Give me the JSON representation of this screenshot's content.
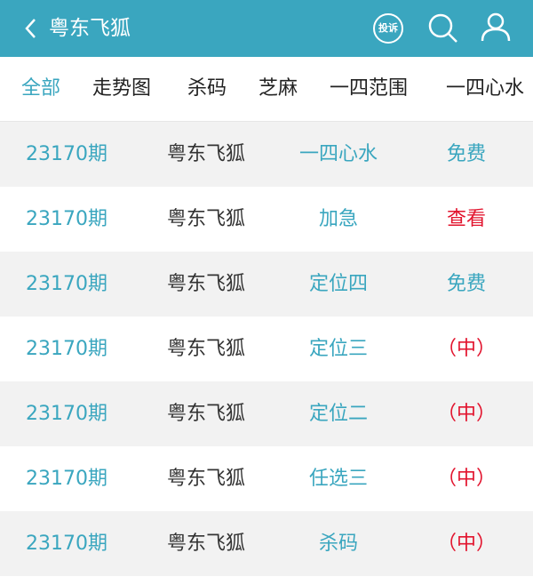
{
  "header": {
    "title": "粤东飞狐",
    "badge": "投诉"
  },
  "tabs": [
    "全部",
    "走势图",
    "杀码",
    "芝麻",
    "一四范围",
    "一四心水"
  ],
  "table": {
    "rows": [
      [
        "23170期",
        "粤东飞狐",
        "一四心水",
        "免费"
      ],
      [
        "23170期",
        "粤东飞狐",
        "加急",
        "查看"
      ],
      [
        "23170期",
        "粤东飞狐",
        "定位四",
        "免费"
      ],
      [
        "23170期",
        "粤东飞狐",
        "定位三",
        "（中）"
      ],
      [
        "23170期",
        "粤东飞狐",
        "定位二",
        "（中）"
      ],
      [
        "23170期",
        "粤东飞狐",
        "任选三",
        "（中）"
      ],
      [
        "23170期",
        "粤东飞狐",
        "杀码",
        "（中）"
      ]
    ]
  }
}
